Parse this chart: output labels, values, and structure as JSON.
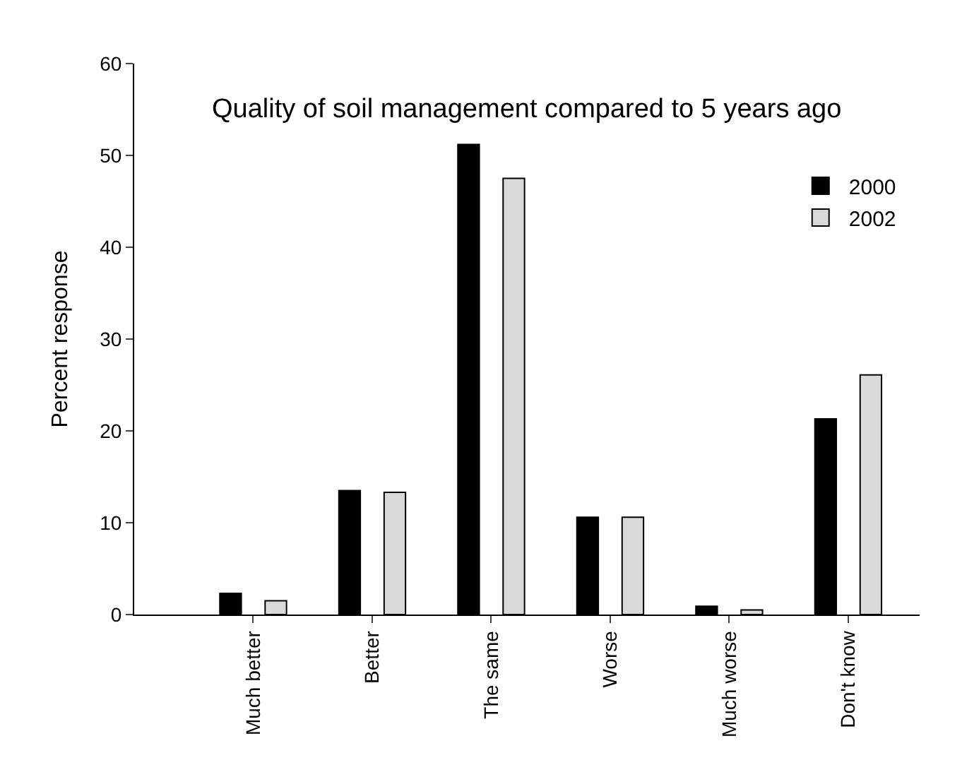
{
  "chart_data": {
    "type": "bar",
    "title": "Quality of soil management compared to 5 years ago",
    "ylabel": "Percent response",
    "categories": [
      "Much better",
      "Better",
      "The same",
      "Worse",
      "Much worse",
      "Don't know"
    ],
    "series": [
      {
        "name": "2000",
        "color": "#000000",
        "values": [
          2.3,
          13.5,
          51.2,
          10.6,
          0.9,
          21.3
        ]
      },
      {
        "name": "2002",
        "color": "#d9d9d9",
        "values": [
          1.5,
          13.3,
          47.5,
          10.6,
          0.5,
          26.1
        ]
      }
    ],
    "ylim": [
      0,
      60
    ],
    "yticks": [
      0,
      10,
      20,
      30,
      40,
      50,
      60
    ],
    "legend": "top right"
  }
}
